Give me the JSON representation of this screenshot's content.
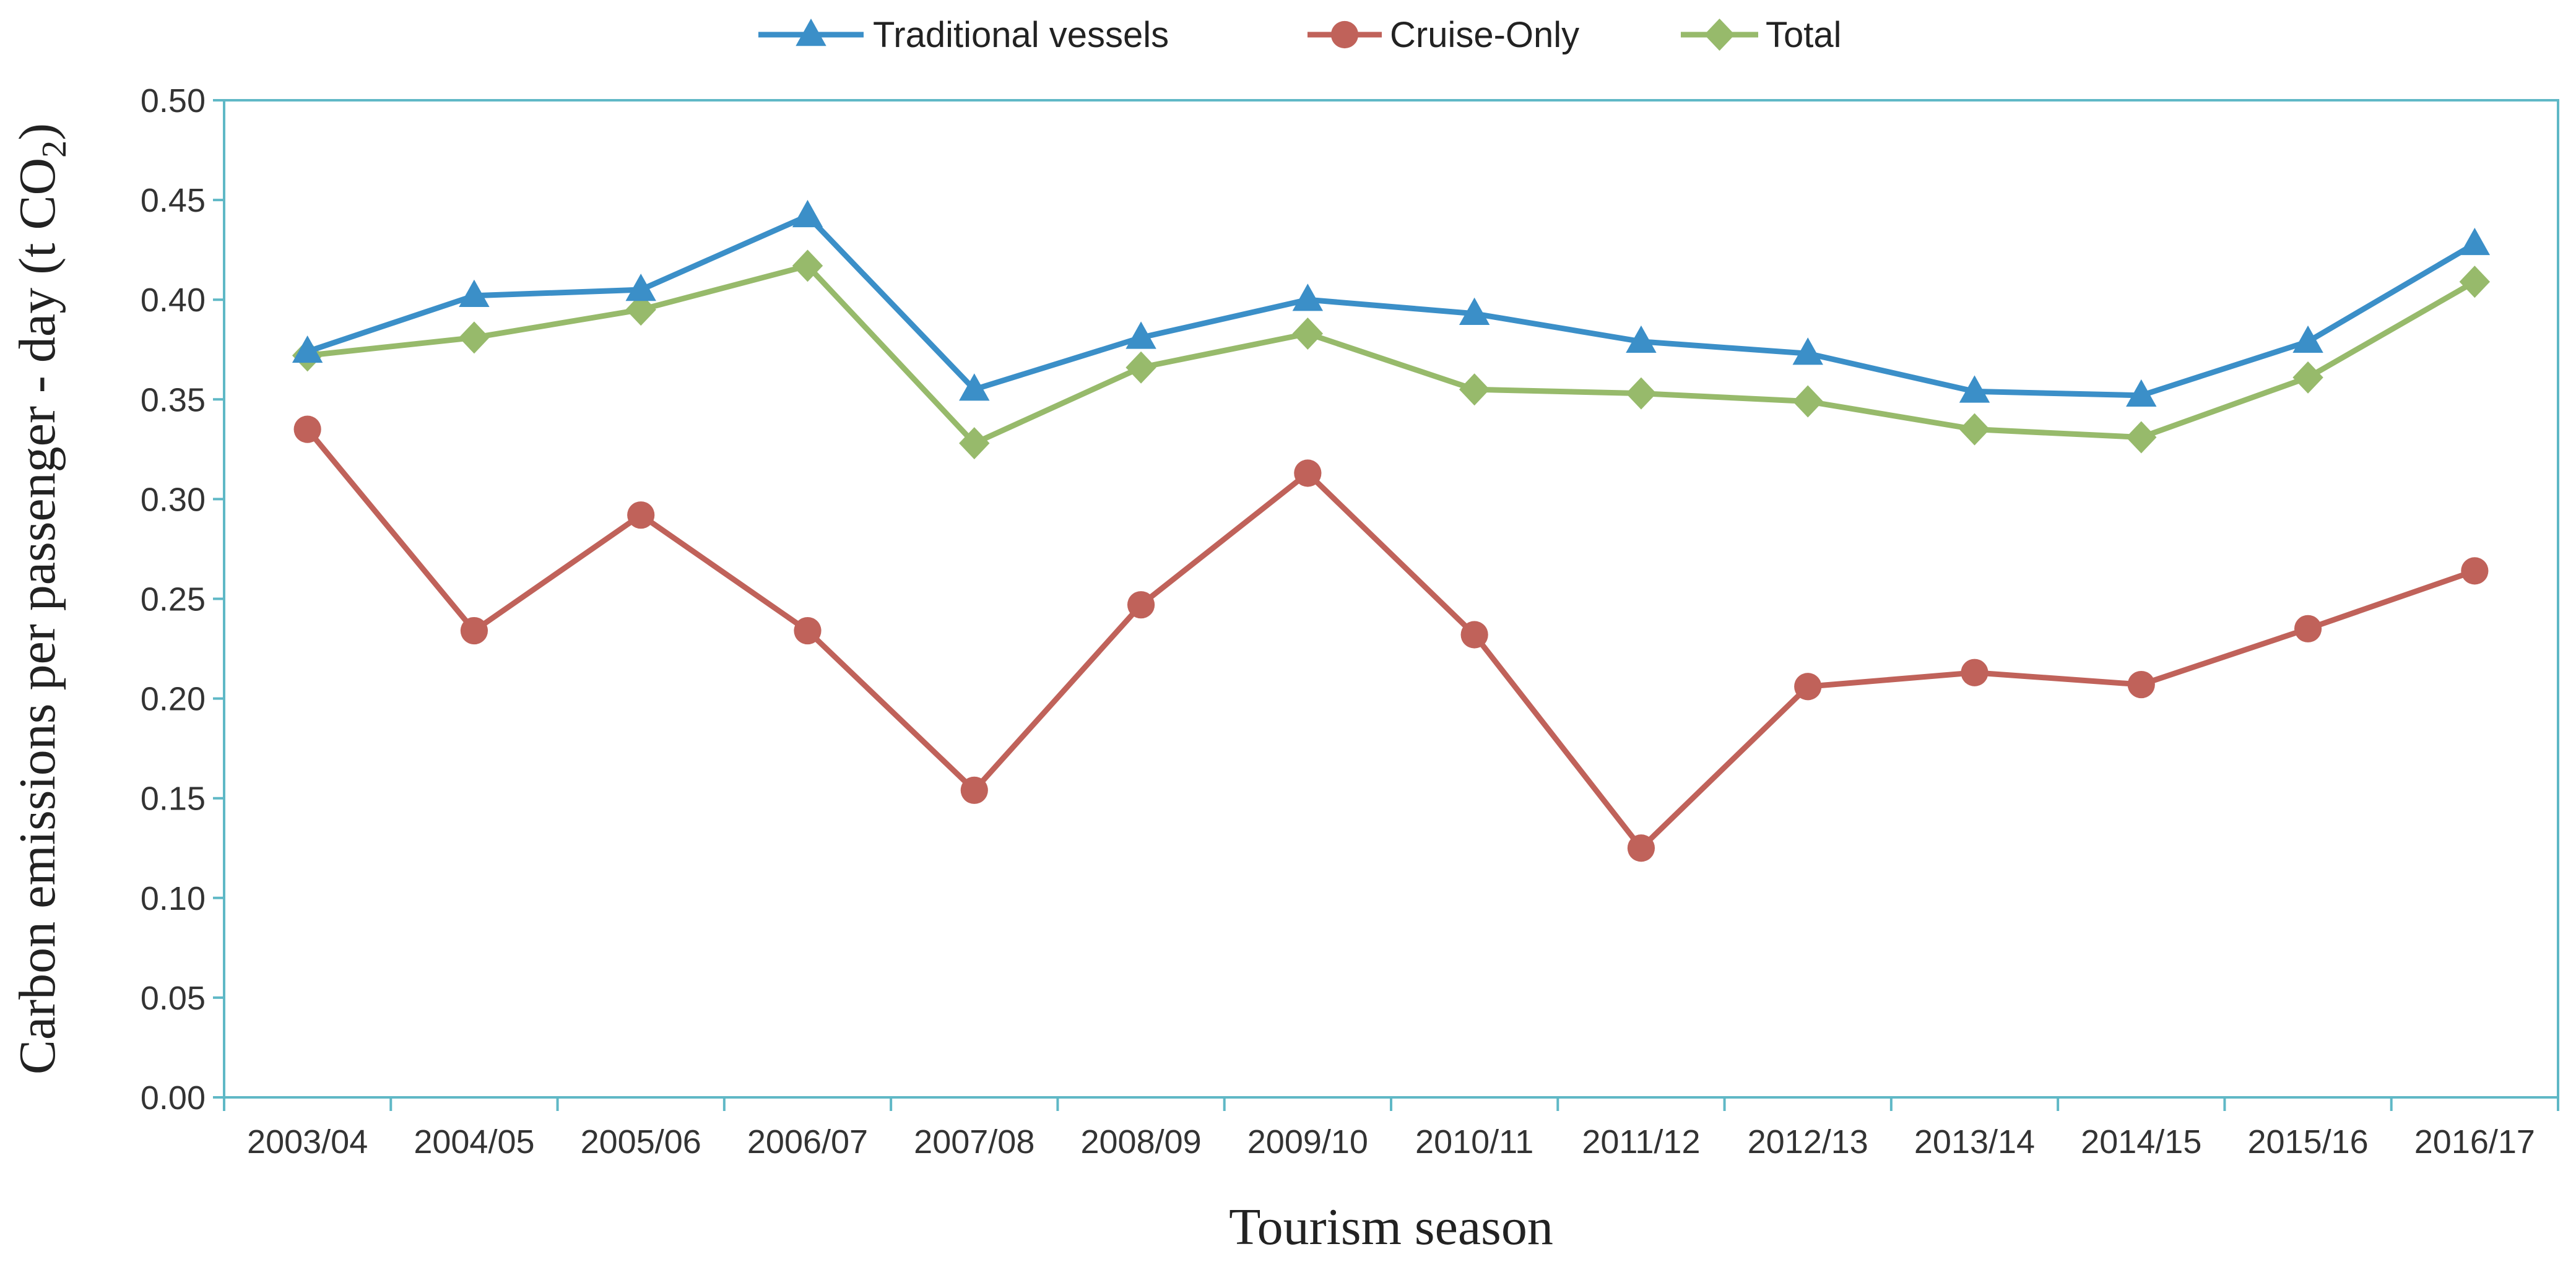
{
  "chart_data": {
    "type": "line",
    "title": "",
    "xlabel": "Tourism season",
    "ylabel_main": "Carbon emissions per passenger - day (t CO",
    "ylabel_sub": "2",
    "ylabel_end": ")",
    "categories": [
      "2003/04",
      "2004/05",
      "2005/06",
      "2006/07",
      "2007/08",
      "2008/09",
      "2009/10",
      "2010/11",
      "2011/12",
      "2012/13",
      "2013/14",
      "2014/15",
      "2015/16",
      "2016/17"
    ],
    "ylim": [
      0,
      0.5
    ],
    "yticks": [
      "0.00",
      "0.05",
      "0.10",
      "0.15",
      "0.20",
      "0.25",
      "0.30",
      "0.35",
      "0.40",
      "0.45",
      "0.50"
    ],
    "grid": false,
    "legend_position": "top-center",
    "series": [
      {
        "name": "Traditional vessels",
        "color": "#3B8FC8",
        "marker": "triangle",
        "values": [
          0.374,
          0.402,
          0.405,
          0.442,
          0.355,
          0.381,
          0.4,
          0.393,
          0.379,
          0.373,
          0.354,
          0.352,
          0.379,
          0.428
        ]
      },
      {
        "name": "Cruise-Only",
        "color": "#C0625A",
        "marker": "circle",
        "values": [
          0.335,
          0.234,
          0.292,
          0.234,
          0.154,
          0.247,
          0.313,
          0.232,
          0.125,
          0.206,
          0.213,
          0.207,
          0.235,
          0.264
        ]
      },
      {
        "name": "Total",
        "color": "#97BA6B",
        "marker": "diamond",
        "values": [
          0.372,
          0.381,
          0.395,
          0.417,
          0.328,
          0.366,
          0.383,
          0.355,
          0.353,
          0.349,
          0.335,
          0.331,
          0.361,
          0.409
        ]
      }
    ]
  }
}
